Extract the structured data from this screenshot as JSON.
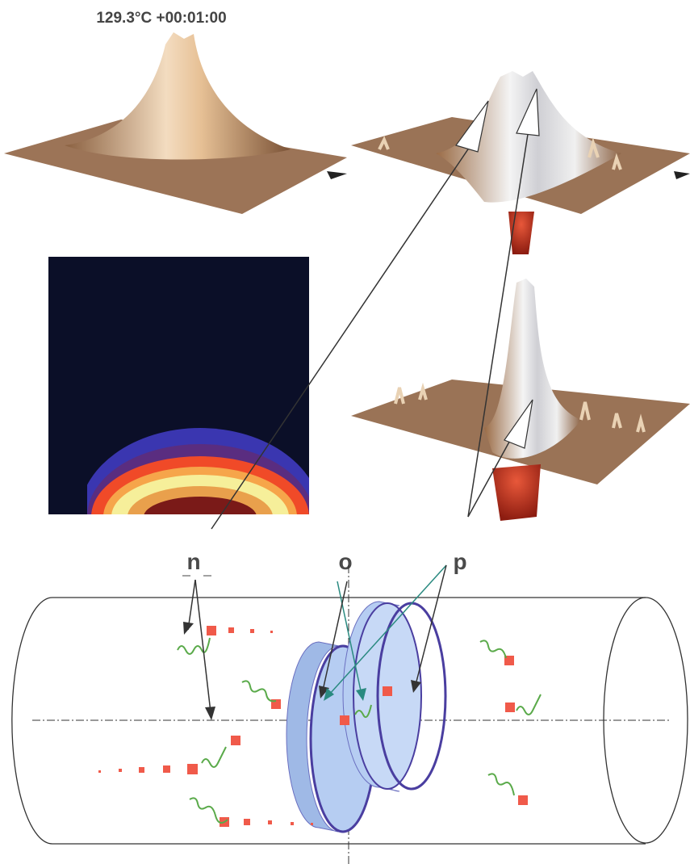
{
  "header": {
    "title": "129.3°C +00:01:00"
  },
  "labels": {
    "n": "n",
    "o": "o",
    "p": "p"
  }
}
